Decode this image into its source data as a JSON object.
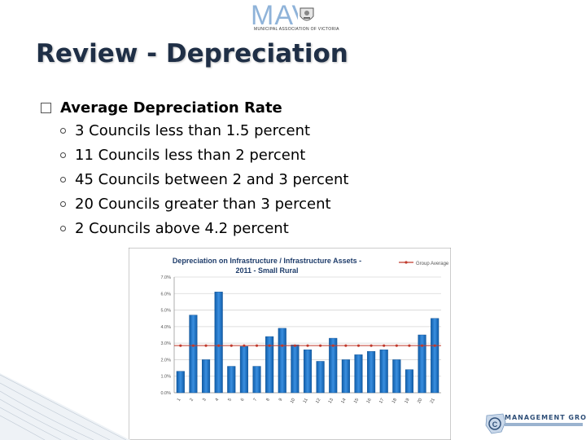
{
  "logo": {
    "brand": "MAV",
    "subtitle": "MUNICIPAL ASSOCIATION OF VICTORIA"
  },
  "title": "Review - Depreciation",
  "bullet": {
    "heading": "Average Depreciation Rate",
    "items": [
      "3 Councils less than 1.5 percent",
      "11 Councils less than 2 percent",
      "45 Councils between 2 and 3 percent",
      "20 Councils greater than 3 percent",
      "2 Councils above 4.2 percent"
    ]
  },
  "footer_logo": {
    "text": "MANAGEMENT GROUP"
  },
  "colors": {
    "bar": "#1d74c9",
    "avg_line": "#c0392b",
    "title": "#1f2f46"
  },
  "chart_data": {
    "type": "bar",
    "title": "Depreciation on Infrastructure / Infrastructure Assets - 2011 - Small Rural",
    "legend": "Group Average",
    "legend_position": "top-right",
    "categories": [
      "1",
      "2",
      "3",
      "4",
      "5",
      "6",
      "7",
      "8",
      "9",
      "10",
      "11",
      "12",
      "13",
      "14",
      "15",
      "16",
      "17",
      "18",
      "19",
      "20",
      "21"
    ],
    "values": [
      1.3,
      4.7,
      2.0,
      6.1,
      1.6,
      2.8,
      1.6,
      3.4,
      3.9,
      2.9,
      2.6,
      1.9,
      3.3,
      2.0,
      2.3,
      2.5,
      2.6,
      2.0,
      1.4,
      3.5,
      4.5
    ],
    "average": 2.85,
    "ylim": [
      0,
      7
    ],
    "yticks": [
      "0.0%",
      "1.0%",
      "2.0%",
      "3.0%",
      "4.0%",
      "5.0%",
      "6.0%",
      "7.0%"
    ],
    "grid": true
  }
}
